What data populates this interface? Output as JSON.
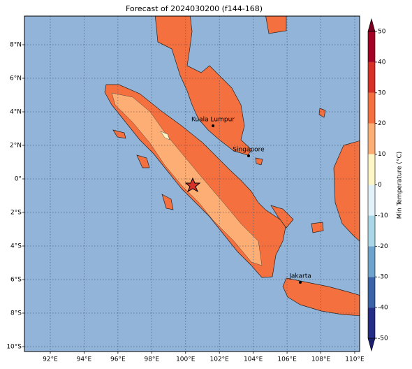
{
  "title": "Forecast of 2024030200 (f144-168)",
  "map": {
    "lon_ticks": [
      {
        "value": 92,
        "label": "92°E"
      },
      {
        "value": 94,
        "label": "94°E"
      },
      {
        "value": 96,
        "label": "96°E"
      },
      {
        "value": 98,
        "label": "98°E"
      },
      {
        "value": 100,
        "label": "100°E"
      },
      {
        "value": 102,
        "label": "102°E"
      },
      {
        "value": 104,
        "label": "104°E"
      },
      {
        "value": 106,
        "label": "106°E"
      },
      {
        "value": 108,
        "label": "108°E"
      },
      {
        "value": 110,
        "label": "110°E"
      }
    ],
    "lat_ticks": [
      {
        "value": 8,
        "label": "8°N"
      },
      {
        "value": 6,
        "label": "6°N"
      },
      {
        "value": 4,
        "label": "4°N"
      },
      {
        "value": 2,
        "label": "2°N"
      },
      {
        "value": 0,
        "label": "0°"
      },
      {
        "value": -2,
        "label": "2°S"
      },
      {
        "value": -4,
        "label": "4°S"
      },
      {
        "value": -6,
        "label": "6°S"
      },
      {
        "value": -8,
        "label": "8°S"
      },
      {
        "value": -10,
        "label": "10°S"
      }
    ],
    "cities": [
      {
        "name": "Kuala Lumpur"
      },
      {
        "name": "Singapore"
      },
      {
        "name": "Jakarta"
      }
    ]
  },
  "colorbar": {
    "label": "Min Temperature (°C)",
    "ticks": [
      -50,
      -40,
      -30,
      -20,
      -10,
      0,
      10,
      20,
      30,
      40,
      50
    ],
    "colors": [
      "#262d86",
      "#3b63a9",
      "#6ea3cd",
      "#aad7e8",
      "#e1f3f8",
      "#fef6c5",
      "#fdae75",
      "#f4703f",
      "#d73027",
      "#a50026"
    ],
    "under_color": "#1a1f6e",
    "over_color": "#7a0020"
  }
}
